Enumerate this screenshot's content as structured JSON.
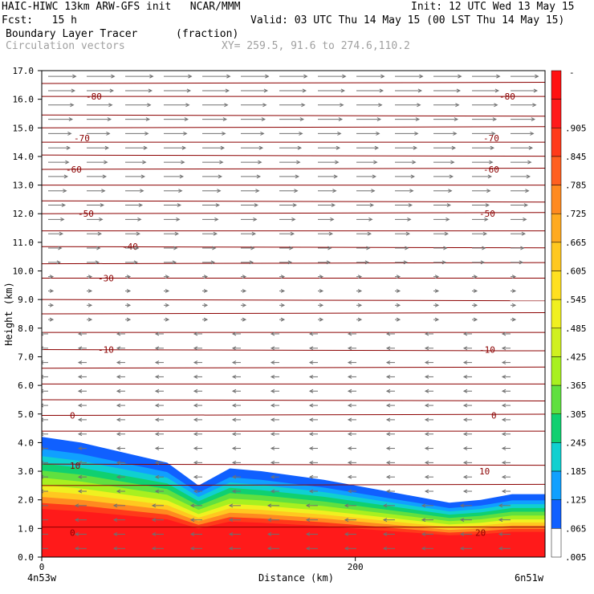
{
  "header": {
    "title_left": "HAIC-HIWC 13km ARW-GFS init   NCAR/MMM",
    "init": "Init: 12 UTC Wed 13 May 15",
    "fcst": "Fcst:   15 h",
    "valid": "Valid: 03 UTC Thu 14 May 15 (00 LST Thu 14 May 15)",
    "field1": "Boundary Layer Tracer",
    "field1_units": "(fraction)",
    "field2": "Circulation vectors",
    "xy": "XY= 259.5, 91.6 to 274.6,110.2"
  },
  "colors": {
    "contour": "#8b0000",
    "vector": "#707070",
    "frame": "#000000"
  },
  "chart_data": {
    "type": "heatmap",
    "xlabel": "Distance (km)",
    "ylabel": "Height (km)",
    "xlim": [
      0,
      321
    ],
    "ylim": [
      0,
      17
    ],
    "x_ticks": [
      {
        "value": 0,
        "label": "0"
      },
      {
        "value": 200,
        "label": "200"
      }
    ],
    "x_end_labels": {
      "left": "4n53w",
      "right": "6n51w"
    },
    "y_ticks": [
      "0.0",
      "1.0",
      "2.0",
      "3.0",
      "4.0",
      "5.0",
      "6.0",
      "7.0",
      "8.0",
      "9.0",
      "10.0",
      "11.0",
      "12.0",
      "13.0",
      "14.0",
      "15.0",
      "16.0",
      "17.0"
    ],
    "colorbar": {
      "top_label": "-",
      "labels": [
        ".905",
        ".845",
        ".785",
        ".725",
        ".665",
        ".605",
        ".545",
        ".485",
        ".425",
        ".365",
        ".305",
        ".245",
        ".185",
        ".125",
        ".065",
        ".005"
      ],
      "colors": [
        "#ff1a1a",
        "#ff3a1a",
        "#ff6020",
        "#ff8a20",
        "#ffaa20",
        "#ffc820",
        "#ffe020",
        "#f0f020",
        "#d0f020",
        "#a8f020",
        "#60e040",
        "#10d070",
        "#10d0d0",
        "#10a0ff",
        "#1060ff",
        "#ffffff"
      ]
    },
    "isotherm_labels_c": [
      "-80",
      "-70",
      "-60",
      "-50",
      "-40",
      "-30",
      "-10",
      "0",
      "10",
      "20",
      "0"
    ],
    "tracer_top_km": [
      4.2,
      4.0,
      3.3,
      2.5,
      3.1,
      3.0,
      2.7,
      2.3,
      1.9,
      2.0,
      2.2,
      2.2,
      2.2
    ],
    "tracer_top_x": [
      0,
      25,
      80,
      100,
      120,
      140,
      180,
      220,
      260,
      280,
      300,
      320,
      321
    ]
  }
}
